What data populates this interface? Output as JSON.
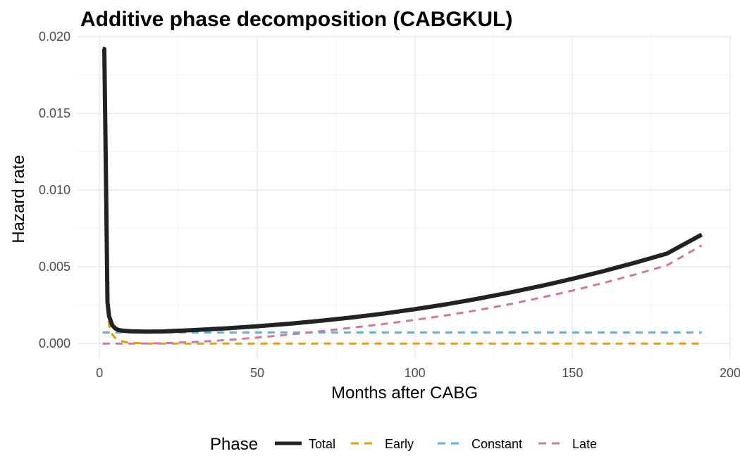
{
  "chart_data": {
    "type": "line",
    "title": "Additive phase decomposition (CABGKUL)",
    "xlabel": "Months after CABG",
    "ylabel": "Hazard rate",
    "xlim": [
      -7,
      200
    ],
    "ylim": [
      -0.001,
      0.0201
    ],
    "x_ticks": [
      0,
      50,
      100,
      150,
      200
    ],
    "x_tick_labels": [
      "0",
      "50",
      "100",
      "150",
      "200"
    ],
    "y_ticks": [
      0.0,
      0.005,
      0.01,
      0.015,
      0.02
    ],
    "y_tick_labels": [
      "0.000",
      "0.005",
      "0.010",
      "0.015",
      "0.020"
    ],
    "grid": true,
    "legend": {
      "title": "Phase",
      "position": "bottom"
    },
    "series": [
      {
        "name": "Total",
        "color": "#222222",
        "dash": "solid",
        "x": [
          1,
          1.5,
          2,
          2.5,
          3,
          4,
          5,
          6,
          8,
          10,
          12,
          15,
          20,
          30,
          40,
          50,
          60,
          70,
          80,
          90,
          100,
          110,
          120,
          130,
          140,
          150,
          160,
          170,
          180,
          191
        ],
        "y": [
          0.0192,
          0.0192,
          0.011,
          0.0027,
          0.0018,
          0.0012,
          0.00098,
          0.00088,
          0.00082,
          0.0008,
          0.00079,
          0.00078,
          0.00079,
          0.00088,
          0.00099,
          0.00113,
          0.00129,
          0.00148,
          0.0017,
          0.00195,
          0.00224,
          0.00256,
          0.00292,
          0.00332,
          0.00375,
          0.00422,
          0.00473,
          0.00528,
          0.00587,
          0.0071
        ]
      },
      {
        "name": "Early",
        "color": "#E69F00",
        "dash": "dashed",
        "x": [
          1,
          1.5,
          2,
          2.5,
          3,
          4,
          5,
          6,
          8,
          10,
          15,
          20,
          50,
          100,
          150,
          191
        ],
        "y": [
          0.0187,
          0.0187,
          0.0105,
          0.0022,
          0.0012,
          0.0006,
          0.00035,
          0.0002,
          0.0001,
          5e-05,
          0.0,
          0.0,
          0.0,
          0.0,
          0.0,
          0.0
        ]
      },
      {
        "name": "Constant",
        "color": "#56B4E9",
        "dash": "dashed",
        "x": [
          1,
          191
        ],
        "y": [
          0.00072,
          0.00072
        ]
      },
      {
        "name": "Late",
        "color": "#CC79A7",
        "dash": "dashed",
        "x": [
          1,
          10,
          20,
          30,
          40,
          50,
          60,
          70,
          80,
          90,
          100,
          110,
          120,
          130,
          140,
          150,
          160,
          170,
          180,
          191
        ],
        "y": [
          0.0,
          0.0,
          2e-05,
          0.0001,
          0.00022,
          0.00039,
          0.00058,
          0.0008,
          0.00103,
          0.00127,
          0.00154,
          0.00184,
          0.00218,
          0.00256,
          0.00299,
          0.00345,
          0.00396,
          0.00451,
          0.0051,
          0.0064
        ]
      }
    ]
  }
}
